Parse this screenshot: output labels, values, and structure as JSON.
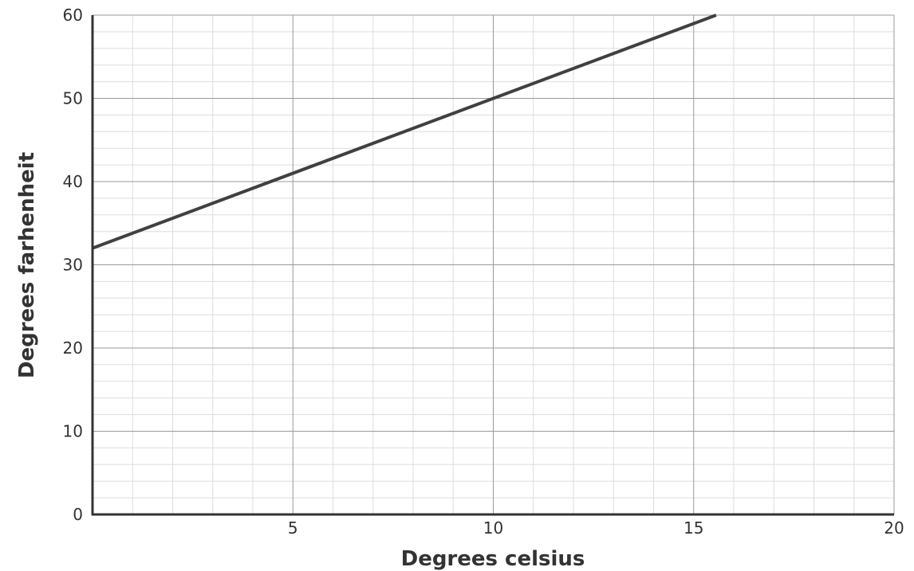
{
  "chart_data": {
    "type": "line",
    "xlabel": "Degrees celsius",
    "ylabel": "Degrees farhenheit",
    "xlim": [
      0,
      20
    ],
    "ylim": [
      0,
      60
    ],
    "x_ticks": [
      {
        "value": 5,
        "label": "5"
      },
      {
        "value": 10,
        "label": "10"
      },
      {
        "value": 15,
        "label": "15"
      },
      {
        "value": 20,
        "label": "20"
      }
    ],
    "y_ticks": [
      {
        "value": 0,
        "label": "0"
      },
      {
        "value": 10,
        "label": "10"
      },
      {
        "value": 20,
        "label": "20"
      },
      {
        "value": 30,
        "label": "30"
      },
      {
        "value": 40,
        "label": "40"
      },
      {
        "value": 50,
        "label": "50"
      },
      {
        "value": 60,
        "label": "60"
      }
    ],
    "x_minor_step": 1,
    "y_minor_step": 2,
    "grid": true,
    "series": [
      {
        "x": [
          0,
          15.56
        ],
        "y": [
          32,
          60
        ],
        "color": "#404040"
      }
    ],
    "colors": {
      "line": "#404040",
      "axis": "#333333",
      "major_grid": "#9a9a9a",
      "minor_grid": "#dddddd",
      "text": "#333333"
    }
  }
}
